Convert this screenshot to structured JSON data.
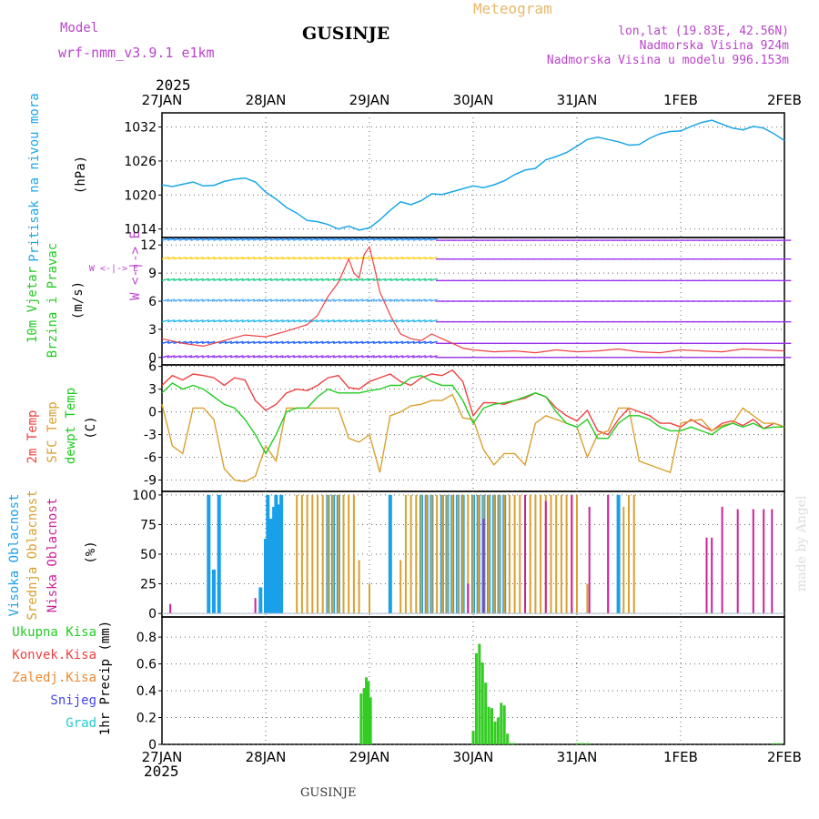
{
  "header": {
    "model_label": "Model",
    "model_name": "wrf-nmm_v3.9.1 e1km",
    "station": "GUSINJE",
    "meteogram_label": "Meteogram",
    "lonlat": "lon,lat (19.83E, 42.56N)",
    "altitude": "Nadmorska Visina 924m",
    "model_altitude": "Nadmorska Visina u modelu 996.153m",
    "year_top": "2025",
    "year_bottom": "2025",
    "footer_station": "GUSINJE",
    "watermark": "made by Angel"
  },
  "colors": {
    "pressure": "#1aa7e8",
    "temp": "#ef4040",
    "sfc": "#daa030",
    "dew": "#22cc22",
    "high_cloud": "#1aa0e8",
    "mid_cloud": "#daa030",
    "low_cloud": "#cc2299",
    "precip": "#33cc22",
    "purple_text": "#bb44cc",
    "grid": "#666666"
  },
  "chart_data": [
    {
      "type": "line",
      "name": "pressure",
      "ylabel_color_text": "Pritisak na nivou mora",
      "ylabel": "(hPa)",
      "x_ticks": [
        "27JAN",
        "28JAN",
        "29JAN",
        "30JAN",
        "31JAN",
        "1FEB",
        "2FEB"
      ],
      "y_ticks": [
        1014,
        1020,
        1026,
        1032
      ],
      "ylim": [
        1012.5,
        1034.5
      ],
      "x": [
        0,
        0.1,
        0.2,
        0.3,
        0.4,
        0.5,
        0.6,
        0.7,
        0.8,
        0.9,
        1.0,
        1.1,
        1.2,
        1.3,
        1.4,
        1.5,
        1.6,
        1.7,
        1.8,
        1.9,
        2.0,
        2.1,
        2.2,
        2.3,
        2.4,
        2.5,
        2.6,
        2.7,
        2.8,
        2.9,
        3.0,
        3.1,
        3.2,
        3.3,
        3.4,
        3.5,
        3.6,
        3.7,
        3.8,
        3.9,
        4.0,
        4.1,
        4.2,
        4.3,
        4.4,
        4.5,
        4.6,
        4.7,
        4.8,
        4.9,
        5.0,
        5.1,
        5.2,
        5.3,
        5.4,
        5.5,
        5.6,
        5.7,
        5.8,
        5.9,
        6.0
      ],
      "values": [
        1021.8,
        1021.5,
        1021.9,
        1022.3,
        1021.6,
        1021.7,
        1022.4,
        1022.8,
        1023.0,
        1022.3,
        1020.5,
        1019.3,
        1017.8,
        1016.8,
        1015.5,
        1015.3,
        1014.8,
        1014.0,
        1014.5,
        1013.8,
        1014.2,
        1015.6,
        1017.3,
        1018.8,
        1018.3,
        1019.0,
        1020.2,
        1020.1,
        1020.6,
        1021.1,
        1021.6,
        1021.3,
        1021.8,
        1022.5,
        1023.6,
        1024.4,
        1024.7,
        1026.2,
        1026.8,
        1027.5,
        1028.6,
        1029.8,
        1030.2,
        1029.8,
        1029.4,
        1028.8,
        1028.9,
        1030.0,
        1030.8,
        1031.2,
        1031.3,
        1032.1,
        1032.8,
        1033.2,
        1032.5,
        1031.8,
        1031.5,
        1032.1,
        1031.8,
        1030.8,
        1029.6
      ]
    },
    {
      "type": "line",
      "name": "wind",
      "ylabel_color_text": "10m Vjetar",
      "ylabel_color_text2": "Brzina i Pravac",
      "ylabel": "(m/s)",
      "compass": "W <-|-> E",
      "compass2": "S<-|->N",
      "y_ticks": [
        0,
        3,
        6,
        9,
        12
      ],
      "ylim": [
        -0.8,
        12.8
      ],
      "x": [
        0,
        0.2,
        0.4,
        0.6,
        0.8,
        1.0,
        1.2,
        1.4,
        1.5,
        1.6,
        1.7,
        1.8,
        1.85,
        1.9,
        1.95,
        2.0,
        2.05,
        2.1,
        2.2,
        2.3,
        2.4,
        2.5,
        2.6,
        2.7,
        2.8,
        2.9,
        3.0,
        3.2,
        3.4,
        3.6,
        3.8,
        4.0,
        4.2,
        4.4,
        4.6,
        4.8,
        5.0,
        5.2,
        5.4,
        5.6,
        5.8,
        6.0
      ],
      "values": [
        2.0,
        1.5,
        1.2,
        1.8,
        2.4,
        2.2,
        2.8,
        3.5,
        4.5,
        6.5,
        8.0,
        10.5,
        9.0,
        8.5,
        11.0,
        11.8,
        9.5,
        7.0,
        4.5,
        2.5,
        2.0,
        1.8,
        2.5,
        2.0,
        1.5,
        1.0,
        0.8,
        0.6,
        0.7,
        0.5,
        0.8,
        0.6,
        0.7,
        0.9,
        0.6,
        0.5,
        0.8,
        0.7,
        0.6,
        0.9,
        0.8,
        0.7
      ]
    },
    {
      "type": "line",
      "name": "temperature",
      "ylabel_t2m": "2m Temp",
      "ylabel_sfc": "SFC Temp",
      "ylabel_dew": "dewpt Temp",
      "ylabel": "(C)",
      "y_ticks": [
        -9,
        -6,
        -3,
        0,
        3,
        6
      ],
      "ylim": [
        -10.5,
        6.2
      ],
      "x": [
        0,
        0.1,
        0.2,
        0.3,
        0.4,
        0.5,
        0.6,
        0.7,
        0.8,
        0.9,
        1.0,
        1.1,
        1.2,
        1.3,
        1.4,
        1.5,
        1.6,
        1.7,
        1.8,
        1.9,
        2.0,
        2.1,
        2.2,
        2.3,
        2.4,
        2.5,
        2.6,
        2.7,
        2.8,
        2.9,
        3.0,
        3.1,
        3.2,
        3.3,
        3.4,
        3.5,
        3.6,
        3.7,
        3.8,
        3.9,
        4.0,
        4.1,
        4.2,
        4.3,
        4.4,
        4.5,
        4.6,
        4.7,
        4.8,
        4.9,
        5.0,
        5.1,
        5.2,
        5.3,
        5.4,
        5.5,
        5.6,
        5.7,
        5.8,
        5.9,
        6.0
      ],
      "series": [
        {
          "name": "2m Temp",
          "key": "t2m",
          "values": [
            3.5,
            4.8,
            4.2,
            5.0,
            4.8,
            4.5,
            3.5,
            4.5,
            4.2,
            1.5,
            0.2,
            1.0,
            2.5,
            3.0,
            2.8,
            3.5,
            4.5,
            4.8,
            3.2,
            3.0,
            4.0,
            4.5,
            5.0,
            4.0,
            3.5,
            4.5,
            5.0,
            4.8,
            5.5,
            4.0,
            -0.5,
            1.2,
            1.2,
            1.0,
            1.5,
            1.8,
            2.5,
            2.0,
            0.5,
            -0.5,
            -1.2,
            0.2,
            -2.5,
            -3.0,
            -1.0,
            0.5,
            0.0,
            -0.5,
            -1.5,
            -1.5,
            -2.0,
            -1.0,
            -1.8,
            -2.5,
            -1.5,
            -1.2,
            -1.8,
            -1.0,
            -2.2,
            -1.5,
            -2.0
          ]
        },
        {
          "name": "SFC Temp",
          "key": "sfc",
          "values": [
            1.0,
            -4.5,
            -5.5,
            0.5,
            0.5,
            -1.0,
            -7.5,
            -9.0,
            -9.2,
            -8.5,
            -4.5,
            -6.5,
            0.5,
            0.5,
            0.5,
            0.5,
            0.5,
            0.5,
            -3.5,
            -4.0,
            -3.0,
            -8.0,
            -0.5,
            0.0,
            0.8,
            1.0,
            1.5,
            1.5,
            2.3,
            -0.8,
            -1.0,
            -5.0,
            -7.0,
            -5.5,
            -5.5,
            -7.0,
            -1.5,
            -0.5,
            -1.0,
            -1.5,
            -2.0,
            -6.0,
            -3.0,
            -2.5,
            0.5,
            0.5,
            -6.5,
            -7.0,
            -7.5,
            -8.0,
            -1.5,
            -1.2,
            -1.0,
            -2.5,
            -1.8,
            -1.5,
            0.5,
            -0.5,
            -1.5,
            -1.5,
            -2.0
          ]
        },
        {
          "name": "dewpt Temp",
          "key": "dew",
          "values": [
            2.5,
            3.8,
            3.0,
            3.5,
            3.0,
            2.0,
            1.0,
            0.5,
            -1.0,
            -3.0,
            -5.5,
            -3.0,
            0.0,
            0.5,
            0.5,
            2.0,
            3.0,
            2.5,
            2.5,
            2.5,
            2.8,
            3.0,
            3.5,
            3.5,
            4.5,
            4.8,
            4.0,
            3.5,
            3.5,
            1.5,
            -1.5,
            0.5,
            1.0,
            1.2,
            1.5,
            2.0,
            2.5,
            2.0,
            0.0,
            -1.5,
            -2.0,
            -1.0,
            -3.5,
            -3.5,
            -1.5,
            -0.5,
            -0.5,
            -1.0,
            -2.0,
            -2.5,
            -2.5,
            -2.0,
            -2.5,
            -3.0,
            -2.0,
            -1.5,
            -2.0,
            -1.5,
            -2.2,
            -2.0,
            -2.0
          ]
        }
      ]
    },
    {
      "type": "bar",
      "name": "cloud",
      "ylabel_high": "Visoka Oblacnost",
      "ylabel_mid": "Srednja Oblacnost",
      "ylabel_low": "Niska Oblacnost",
      "ylabel": "(%)",
      "y_ticks": [
        0,
        25,
        50,
        75,
        100
      ],
      "ylim": [
        -3,
        103
      ],
      "series": [
        {
          "name": "Visoka Oblacnost",
          "key": "high",
          "x": [
            0.45,
            0.5,
            0.55,
            0.95,
            1.0,
            1.02,
            1.05,
            1.08,
            1.1,
            1.12,
            1.15,
            1.6,
            1.65,
            1.7,
            2.2,
            2.5,
            2.55,
            2.6,
            2.7,
            2.75,
            2.8,
            2.85,
            2.9,
            3.0,
            3.05,
            3.1,
            3.15,
            3.2,
            3.25,
            3.3,
            4.4
          ],
          "values": [
            100,
            37,
            100,
            22,
            63,
            100,
            80,
            90,
            100,
            92,
            100,
            100,
            100,
            100,
            100,
            100,
            100,
            100,
            100,
            100,
            100,
            100,
            100,
            100,
            100,
            100,
            100,
            100,
            100,
            100,
            100
          ]
        },
        {
          "name": "Srednja Oblacnost",
          "key": "mid",
          "x": [
            1.3,
            1.35,
            1.4,
            1.45,
            1.5,
            1.55,
            1.6,
            1.65,
            1.7,
            1.75,
            1.8,
            1.85,
            1.9,
            2.0,
            2.3,
            2.35,
            2.4,
            2.45,
            2.5,
            2.55,
            2.6,
            2.65,
            2.7,
            2.75,
            2.8,
            2.85,
            2.9,
            2.95,
            3.0,
            3.05,
            3.1,
            3.15,
            3.2,
            3.25,
            3.3,
            3.35,
            3.4,
            3.45,
            3.5,
            3.55,
            3.6,
            3.65,
            3.7,
            3.75,
            3.8,
            3.85,
            3.9,
            3.95,
            4.0,
            4.1,
            4.3,
            4.45,
            4.5,
            4.55
          ],
          "values": [
            100,
            100,
            100,
            100,
            100,
            100,
            100,
            100,
            100,
            100,
            100,
            100,
            45,
            25,
            45,
            100,
            100,
            100,
            100,
            100,
            100,
            100,
            100,
            100,
            100,
            100,
            100,
            100,
            100,
            100,
            100,
            100,
            100,
            100,
            100,
            100,
            100,
            100,
            100,
            100,
            100,
            100,
            100,
            100,
            100,
            100,
            100,
            100,
            100,
            25,
            100,
            90,
            100,
            100
          ]
        },
        {
          "name": "Niska Oblacnost",
          "key": "low",
          "x": [
            0.08,
            0.9,
            2.95,
            3.1,
            3.5,
            3.7,
            3.95,
            4.12,
            4.3,
            5.25,
            5.3,
            5.4,
            5.55,
            5.7,
            5.8,
            5.88
          ],
          "values": [
            8,
            13,
            25,
            80,
            100,
            95,
            100,
            90,
            100,
            64,
            64,
            90,
            88,
            88,
            88,
            88
          ]
        }
      ]
    },
    {
      "type": "bar",
      "name": "precip",
      "ylabel_total": "Ukupna Kisa",
      "ylabel_conv": "Konvek.Kisa",
      "ylabel_frz": "Zaledj.Kisa",
      "ylabel_snow": "Snijeg",
      "ylabel_hail": "Grad",
      "ylabel": "1hr Precip (mm)",
      "y_ticks": [
        0,
        0.2,
        0.4,
        0.6,
        0.8
      ],
      "ylim": [
        0,
        0.95
      ],
      "x": [
        1.92,
        1.95,
        1.97,
        1.99,
        2.01,
        3.0,
        3.03,
        3.06,
        3.09,
        3.12,
        3.15,
        3.18,
        3.21,
        3.24,
        3.27,
        3.3,
        3.33,
        3.36,
        3.39,
        4.0,
        4.05,
        4.1,
        5.9,
        5.95
      ],
      "values": [
        0.38,
        0.42,
        0.5,
        0.47,
        0.35,
        0.1,
        0.68,
        0.75,
        0.61,
        0.46,
        0.28,
        0.27,
        0.17,
        0.2,
        0.31,
        0.29,
        0.08,
        0.01,
        0.01,
        0.01,
        0.01,
        0.01,
        0.01,
        0.01
      ]
    }
  ]
}
